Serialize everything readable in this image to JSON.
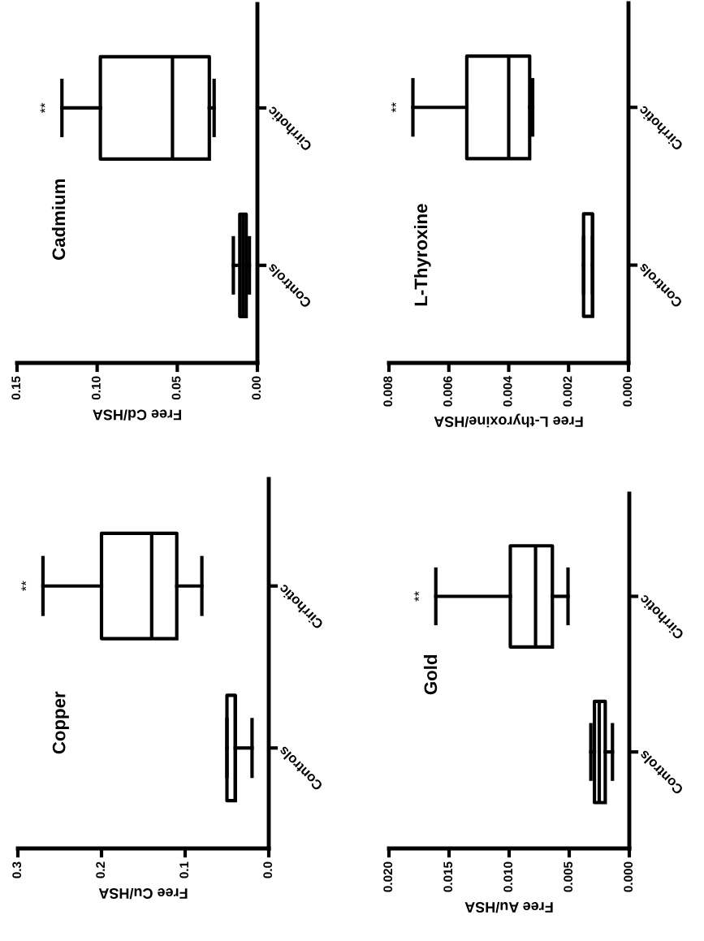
{
  "chart_data": [
    {
      "type": "box",
      "orientation": "horizontal",
      "title": "Cadmium",
      "xlabel": "Free Cd/HSA",
      "categories": [
        "Cirrhotic",
        "Controls"
      ],
      "boxes": [
        {
          "low": 0.027,
          "q1": 0.03,
          "median": 0.053,
          "q3": 0.098,
          "high": 0.122
        },
        {
          "low": 0.005,
          "q1": 0.007,
          "median": 0.009,
          "q3": 0.011,
          "high": 0.015
        }
      ],
      "xlim": [
        0.15,
        0
      ],
      "xticks": [
        {
          "value": 0.15,
          "label": "0.15"
        },
        {
          "value": 0.1,
          "label": "0.10"
        },
        {
          "value": 0.05,
          "label": "0.05"
        },
        {
          "value": 0,
          "label": "0.00"
        }
      ],
      "annotations": [
        {
          "text": "**",
          "x": 0.122,
          "y": "Cirrhotic"
        }
      ]
    },
    {
      "type": "box",
      "orientation": "horizontal",
      "title": "L-Thyroxine",
      "xlabel": "Free L-thyroxine/HSA",
      "categories": [
        "Cirrhotic",
        "Controls"
      ],
      "boxes": [
        {
          "low": 0.0032,
          "q1": 0.0033,
          "median": 0.004,
          "q3": 0.0054,
          "high": 0.0072
        },
        {
          "low": 0.0012,
          "q1": 0.0012,
          "median": 0.0012,
          "q3": 0.0015,
          "high": 0.0015
        }
      ],
      "xlim": [
        0.008,
        0
      ],
      "xticks": [
        {
          "value": 0.008,
          "label": "0.008"
        },
        {
          "value": 0.006,
          "label": "0.006"
        },
        {
          "value": 0.004,
          "label": "0.004"
        },
        {
          "value": 0.002,
          "label": "0.002"
        },
        {
          "value": 0,
          "label": "0.000"
        }
      ],
      "annotations": [
        {
          "text": "**",
          "x": 0.0072,
          "y": "Cirrhotic"
        }
      ]
    },
    {
      "type": "box",
      "orientation": "horizontal",
      "title": "Copper",
      "xlabel": "Free Cu/HSA",
      "categories": [
        "Cirrhotic",
        "Controls"
      ],
      "boxes": [
        {
          "low": 0.08,
          "q1": 0.11,
          "median": 0.14,
          "q3": 0.2,
          "high": 0.27
        },
        {
          "low": 0.02,
          "q1": 0.04,
          "median": 0.04,
          "q3": 0.05,
          "high": 0.05
        }
      ],
      "xlim": [
        0.3,
        0
      ],
      "xticks": [
        0.3,
        0.2,
        0.1,
        {
          "value": 0,
          "label": "0.0"
        }
      ],
      "annotations": [
        {
          "text": "**",
          "x": 0.27,
          "y": "Cirrhotic"
        }
      ]
    },
    {
      "type": "box",
      "orientation": "horizontal",
      "title": "Gold",
      "xlabel": "Free Au/HSA",
      "categories": [
        "Cirrhotic",
        "Controls"
      ],
      "boxes": [
        {
          "low": 0.0051,
          "q1": 0.0064,
          "median": 0.0078,
          "q3": 0.0099,
          "high": 0.0161
        },
        {
          "low": 0.0014,
          "q1": 0.002,
          "median": 0.0025,
          "q3": 0.0029,
          "high": 0.0032
        }
      ],
      "xlim": [
        0.02,
        0
      ],
      "xticks": [
        {
          "value": 0.02,
          "label": "0.020"
        },
        {
          "value": 0.015,
          "label": "0.015"
        },
        {
          "value": 0.01,
          "label": "0.010"
        },
        {
          "value": 0.005,
          "label": "0.005"
        },
        {
          "value": 0,
          "label": "0.000"
        }
      ],
      "annotations": [
        {
          "text": "**",
          "x": 0.0161,
          "y": "Cirrhotic"
        }
      ]
    }
  ]
}
